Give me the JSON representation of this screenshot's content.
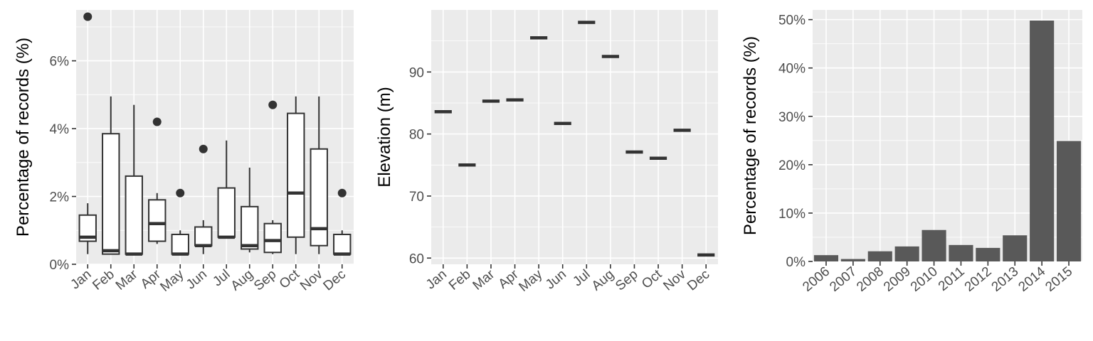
{
  "chart_data": [
    {
      "type": "box",
      "xlabel": "",
      "ylabel": "Percentage of records (%)",
      "ylim": [
        0,
        7.5
      ],
      "yticks": [
        "0%",
        "2%",
        "4%",
        "6%"
      ],
      "ytick_values": [
        0,
        2,
        4,
        6
      ],
      "categories": [
        "Jan",
        "Feb",
        "Mar",
        "Apr",
        "May",
        "Jun",
        "Jul",
        "Aug",
        "Sep",
        "Oct",
        "Nov",
        "Dec"
      ],
      "boxes": [
        {
          "low": 0.3,
          "q1": 0.68,
          "median": 0.8,
          "q3": 1.45,
          "high": 1.8,
          "outliers": [
            7.3
          ]
        },
        {
          "low": 0.3,
          "q1": 0.3,
          "median": 0.4,
          "q3": 3.85,
          "high": 4.95,
          "outliers": []
        },
        {
          "low": 0.3,
          "q1": 0.3,
          "median": 0.3,
          "q3": 2.6,
          "high": 4.7,
          "outliers": []
        },
        {
          "low": 0.6,
          "q1": 0.68,
          "median": 1.2,
          "q3": 1.9,
          "high": 2.1,
          "outliers": [
            4.2
          ]
        },
        {
          "low": 0.3,
          "q1": 0.3,
          "median": 0.3,
          "q3": 0.88,
          "high": 1.0,
          "outliers": [
            2.1
          ]
        },
        {
          "low": 0.3,
          "q1": 0.55,
          "median": 0.55,
          "q3": 1.1,
          "high": 1.3,
          "outliers": [
            3.4
          ]
        },
        {
          "low": 0.8,
          "q1": 0.8,
          "median": 0.8,
          "q3": 2.25,
          "high": 3.65,
          "outliers": []
        },
        {
          "low": 0.35,
          "q1": 0.45,
          "median": 0.55,
          "q3": 1.7,
          "high": 2.85,
          "outliers": []
        },
        {
          "low": 0.3,
          "q1": 0.35,
          "median": 0.7,
          "q3": 1.2,
          "high": 1.3,
          "outliers": [
            4.7
          ]
        },
        {
          "low": 0.3,
          "q1": 0.8,
          "median": 2.1,
          "q3": 4.45,
          "high": 4.95,
          "outliers": []
        },
        {
          "low": 0.3,
          "q1": 0.55,
          "median": 1.05,
          "q3": 3.4,
          "high": 4.95,
          "outliers": []
        },
        {
          "low": 0.3,
          "q1": 0.3,
          "median": 0.3,
          "q3": 0.88,
          "high": 1.0,
          "outliers": [
            2.1
          ]
        }
      ]
    },
    {
      "type": "box",
      "xlabel": "",
      "ylabel": "Elevation (m)",
      "ylim": [
        59,
        100
      ],
      "yticks": [
        "60",
        "70",
        "80",
        "90"
      ],
      "ytick_values": [
        60,
        70,
        80,
        90
      ],
      "categories": [
        "Jan",
        "Feb",
        "Mar",
        "Apr",
        "May",
        "Jun",
        "Jul",
        "Aug",
        "Sep",
        "Oct",
        "Nov",
        "Dec"
      ],
      "values": [
        83.6,
        75.0,
        85.3,
        85.5,
        95.5,
        81.7,
        98.0,
        92.5,
        77.1,
        76.1,
        80.6,
        60.5
      ]
    },
    {
      "type": "bar",
      "xlabel": "",
      "ylabel": "Percentage of records (%)",
      "ylim": [
        0,
        52
      ],
      "yticks": [
        "0%",
        "10%",
        "20%",
        "30%",
        "40%",
        "50%"
      ],
      "ytick_values": [
        0,
        10,
        20,
        30,
        40,
        50
      ],
      "categories": [
        "2006",
        "2007",
        "2008",
        "2009",
        "2010",
        "2011",
        "2012",
        "2013",
        "2014",
        "2015"
      ],
      "values": [
        1.3,
        0.5,
        2.1,
        3.1,
        6.5,
        3.4,
        2.8,
        5.4,
        49.8,
        24.9
      ]
    }
  ]
}
